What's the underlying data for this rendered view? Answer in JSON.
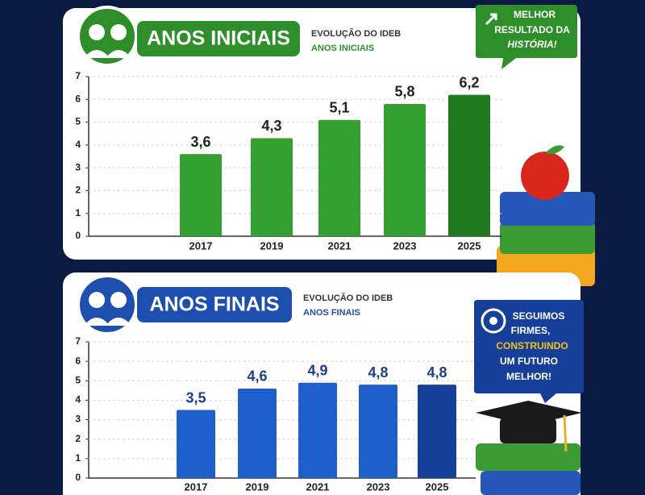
{
  "chart_data": [
    {
      "type": "bar",
      "title": "ANOS INICIAIS",
      "subtitle": [
        "EVOLUÇÃO DO IDEB",
        "ANOS INICIAIS"
      ],
      "annotation": [
        "MELHOR",
        "RESULTADO DA",
        "HISTÓRIA!"
      ],
      "categories": [
        "2017",
        "2019",
        "2021",
        "2023",
        "2025"
      ],
      "values": [
        3.6,
        4.3,
        5.1,
        5.8,
        6.2
      ],
      "value_labels": [
        "3,6",
        "4,3",
        "5,1",
        "5,8",
        "6,2"
      ],
      "colors": [
        "#34a02f",
        "#34a02f",
        "#34a02f",
        "#34a02f",
        "#1f7a1f"
      ],
      "ylim": [
        0,
        7
      ],
      "yticks": [
        0,
        1,
        2,
        3,
        4,
        5,
        6,
        7
      ],
      "grid": true
    },
    {
      "type": "bar",
      "title": "ANOS FINAIS",
      "subtitle": [
        "EVOLUÇÃO DO IDEB",
        "ANOS FINAIS"
      ],
      "annotation": [
        "SEGUIMOS",
        "FIRMES,",
        "CONSTRUINDO",
        "UM FUTURO",
        "MELHOR!"
      ],
      "categories": [
        "2017",
        "2019",
        "2021",
        "2023",
        "2025"
      ],
      "values": [
        3.5,
        4.6,
        4.9,
        4.8,
        4.8
      ],
      "value_labels": [
        "3,5",
        "4,6",
        "4,9",
        "4,8",
        "4,8"
      ],
      "colors": [
        "#1f5fcc",
        "#1f5fcc",
        "#1f5fcc",
        "#1f5fcc",
        "#163f9a"
      ],
      "ylim": [
        0,
        7
      ],
      "yticks": [
        0,
        1,
        2,
        3,
        4,
        5,
        6,
        7
      ],
      "grid": true
    }
  ]
}
